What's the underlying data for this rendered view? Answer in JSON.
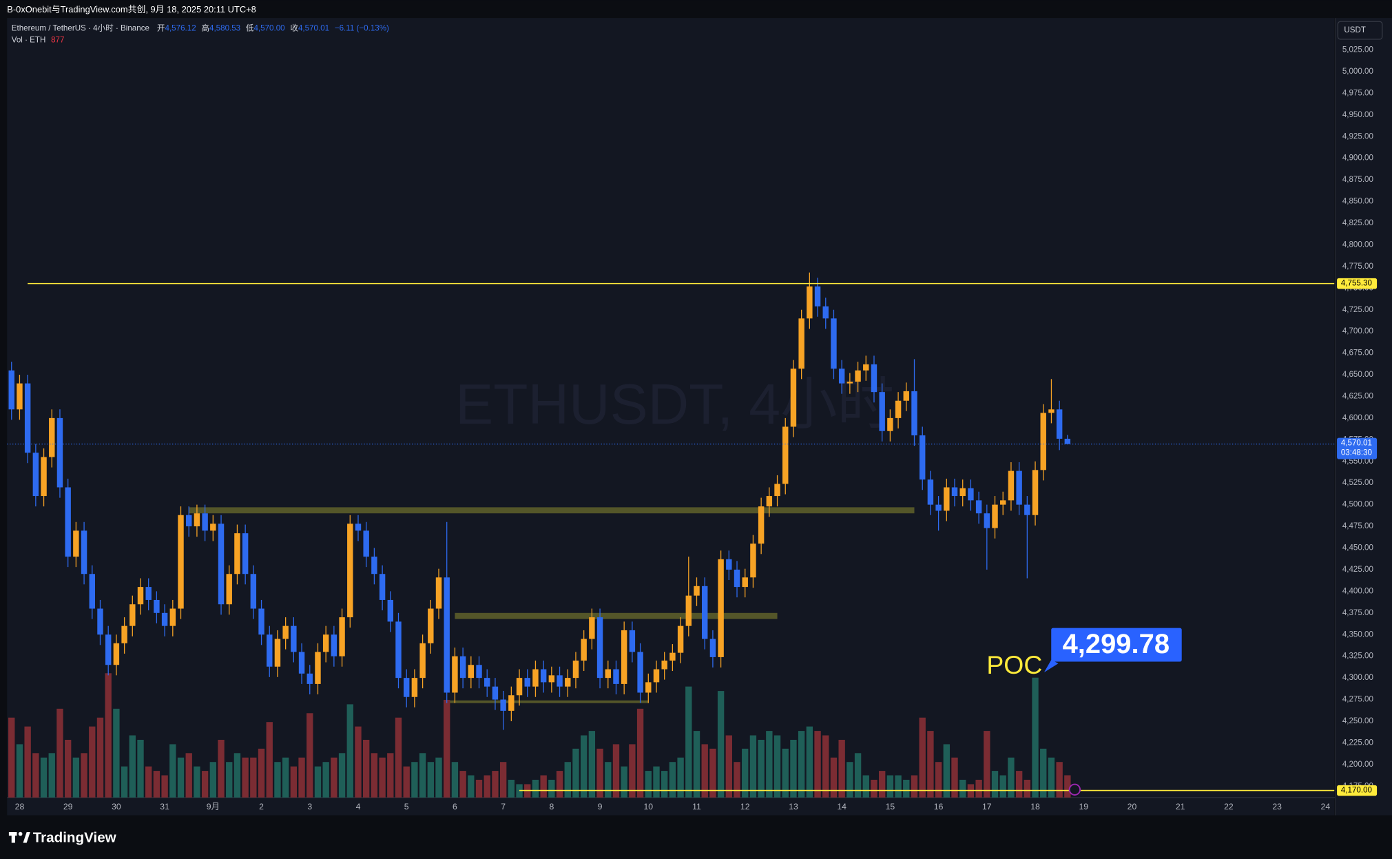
{
  "chart_data": {
    "type": "candlestick",
    "header": "B-0xOnebit与TradingView.com共创, 9月 18, 2025 20:11 UTC+8",
    "watermark": "ETHUSDT, 4小时",
    "symbol": "Ethereum / TetherUS · 4小时 · Binance",
    "ohlc_legend": [
      {
        "key": "开",
        "value": "4,576.12"
      },
      {
        "key": "高",
        "value": "4,580.53"
      },
      {
        "key": "低",
        "value": "4,570.00"
      },
      {
        "key": "收",
        "value": "4,570.01"
      }
    ],
    "change": "−6.11 (−0.13%)",
    "volume_legend": "Vol · ETH",
    "volume_legend_value": "877",
    "currency": "USDT",
    "brand": "TradingView",
    "up_color": "#f7a325",
    "down_color": "#2e6bf0",
    "volume_up_color": "#1f5f58",
    "volume_down_color": "#7b2c33",
    "xlim": [
      -0.55,
      164.1
    ],
    "ylim": [
      4161.9,
      5061.9
    ],
    "grid": false,
    "xticks": [
      {
        "value": 1,
        "label": "28"
      },
      {
        "value": 7,
        "label": "29"
      },
      {
        "value": 13,
        "label": "30"
      },
      {
        "value": 19,
        "label": "31"
      },
      {
        "value": 25,
        "label": "9月"
      },
      {
        "value": 31,
        "label": "2"
      },
      {
        "value": 37,
        "label": "3"
      },
      {
        "value": 43,
        "label": "4"
      },
      {
        "value": 49,
        "label": "5"
      },
      {
        "value": 55,
        "label": "6"
      },
      {
        "value": 61,
        "label": "7"
      },
      {
        "value": 67,
        "label": "8"
      },
      {
        "value": 73,
        "label": "9"
      },
      {
        "value": 79,
        "label": "10"
      },
      {
        "value": 85,
        "label": "11"
      },
      {
        "value": 91,
        "label": "12"
      },
      {
        "value": 97,
        "label": "13"
      },
      {
        "value": 103,
        "label": "14"
      },
      {
        "value": 109,
        "label": "15"
      },
      {
        "value": 115,
        "label": "16"
      },
      {
        "value": 121,
        "label": "17"
      },
      {
        "value": 127,
        "label": "18"
      },
      {
        "value": 133,
        "label": "19"
      },
      {
        "value": 139,
        "label": "20"
      },
      {
        "value": 145,
        "label": "21"
      },
      {
        "value": 151,
        "label": "22"
      },
      {
        "value": 157,
        "label": "23"
      },
      {
        "value": 163,
        "label": "24"
      }
    ],
    "yticks": [
      {
        "value": 4175,
        "label": "4,175.00"
      },
      {
        "value": 4200,
        "label": "4,200.00"
      },
      {
        "value": 4225,
        "label": "4,225.00"
      },
      {
        "value": 4250,
        "label": "4,250.00"
      },
      {
        "value": 4275,
        "label": "4,275.00"
      },
      {
        "value": 4300,
        "label": "4,300.00"
      },
      {
        "value": 4325,
        "label": "4,325.00"
      },
      {
        "value": 4350,
        "label": "4,350.00"
      },
      {
        "value": 4375,
        "label": "4,375.00"
      },
      {
        "value": 4400,
        "label": "4,400.00"
      },
      {
        "value": 4425,
        "label": "4,425.00"
      },
      {
        "value": 4450,
        "label": "4,450.00"
      },
      {
        "value": 4475,
        "label": "4,475.00"
      },
      {
        "value": 4500,
        "label": "4,500.00"
      },
      {
        "value": 4525,
        "label": "4,525.00"
      },
      {
        "value": 4550,
        "label": "4,550.00"
      },
      {
        "value": 4575,
        "label": "4,575.00"
      },
      {
        "value": 4600,
        "label": "4,600.00"
      },
      {
        "value": 4625,
        "label": "4,625.00"
      },
      {
        "value": 4650,
        "label": "4,650.00"
      },
      {
        "value": 4675,
        "label": "4,675.00"
      },
      {
        "value": 4700,
        "label": "4,700.00"
      },
      {
        "value": 4725,
        "label": "4,725.00"
      },
      {
        "value": 4750,
        "label": "4,750.00"
      },
      {
        "value": 4775,
        "label": "4,775.00"
      },
      {
        "value": 4800,
        "label": "4,800.00"
      },
      {
        "value": 4825,
        "label": "4,825.00"
      },
      {
        "value": 4850,
        "label": "4,850.00"
      },
      {
        "value": 4875,
        "label": "4,875.00"
      },
      {
        "value": 4900,
        "label": "4,900.00"
      },
      {
        "value": 4925,
        "label": "4,925.00"
      },
      {
        "value": 4950,
        "label": "4,950.00"
      },
      {
        "value": 4975,
        "label": "4,975.00"
      },
      {
        "value": 5000,
        "label": "5,000.00"
      },
      {
        "value": 5025,
        "label": "5,025.00"
      }
    ],
    "open": [
      4655,
      4610,
      4640,
      4560,
      4510,
      4555,
      4600,
      4520,
      4440,
      4470,
      4420,
      4380,
      4350,
      4315,
      4340,
      4360,
      4385,
      4405,
      4390,
      4375,
      4360,
      4380,
      4488,
      4475,
      4490,
      4470,
      4478,
      4385,
      4420,
      4467,
      4420,
      4380,
      4350,
      4313,
      4345,
      4360,
      4330,
      4305,
      4293,
      4330,
      4350,
      4325,
      4370,
      4478,
      4470,
      4440,
      4420,
      4390,
      4365,
      4300,
      4278,
      4300,
      4340,
      4380,
      4416,
      4283,
      4325,
      4300,
      4315,
      4300,
      4290,
      4275,
      4262,
      4280,
      4300,
      4290,
      4310,
      4295,
      4303,
      4290,
      4300,
      4320,
      4345,
      4370,
      4300,
      4310,
      4293,
      4355,
      4330,
      4283,
      4295,
      4310,
      4320,
      4329,
      4360,
      4395,
      4406,
      4345,
      4324,
      4437,
      4425,
      4405,
      4416,
      4455,
      4498,
      4510,
      4524,
      4590,
      4657,
      4715,
      4752,
      4729,
      4715,
      4657,
      4640,
      4642,
      4655,
      4662,
      4630,
      4585,
      4600,
      4620,
      4631,
      4580,
      4529,
      4500,
      4493,
      4520,
      4510,
      4519,
      4505,
      4490,
      4473,
      4500,
      4505,
      4539,
      4500,
      4488,
      4540,
      4606,
      4610,
      4576.12
    ],
    "high": [
      4665,
      4650,
      4650,
      4570,
      4565,
      4610,
      4610,
      4530,
      4480,
      4480,
      4430,
      4390,
      4360,
      4350,
      4370,
      4395,
      4415,
      4415,
      4400,
      4385,
      4390,
      4498,
      4498,
      4500,
      4500,
      4488,
      4488,
      4430,
      4477,
      4477,
      4430,
      4390,
      4360,
      4355,
      4370,
      4370,
      4340,
      4315,
      4340,
      4360,
      4360,
      4380,
      4488,
      4488,
      4480,
      4450,
      4430,
      4400,
      4375,
      4310,
      4310,
      4350,
      4390,
      4426,
      4480,
      4335,
      4335,
      4325,
      4325,
      4310,
      4300,
      4285,
      4290,
      4310,
      4310,
      4320,
      4320,
      4313,
      4313,
      4310,
      4330,
      4355,
      4380,
      4380,
      4320,
      4320,
      4365,
      4365,
      4340,
      4305,
      4320,
      4330,
      4339,
      4370,
      4440,
      4416,
      4416,
      4355,
      4447,
      4447,
      4435,
      4426,
      4465,
      4508,
      4520,
      4534,
      4600,
      4667,
      4725,
      4768,
      4762,
      4739,
      4725,
      4667,
      4652,
      4665,
      4672,
      4672,
      4640,
      4610,
      4630,
      4641,
      4668,
      4590,
      4539,
      4510,
      4530,
      4530,
      4529,
      4529,
      4515,
      4500,
      4510,
      4515,
      4549,
      4549,
      4510,
      4550,
      4616,
      4645,
      4620,
      4580.53
    ],
    "low": [
      4598,
      4598,
      4548,
      4498,
      4498,
      4543,
      4508,
      4428,
      4428,
      4408,
      4368,
      4338,
      4303,
      4303,
      4328,
      4348,
      4373,
      4378,
      4363,
      4348,
      4348,
      4368,
      4463,
      4463,
      4458,
      4458,
      4373,
      4373,
      4408,
      4408,
      4368,
      4338,
      4301,
      4301,
      4333,
      4318,
      4293,
      4281,
      4281,
      4318,
      4313,
      4313,
      4358,
      4458,
      4428,
      4408,
      4378,
      4353,
      4288,
      4266,
      4266,
      4288,
      4328,
      4368,
      4271,
      4271,
      4288,
      4288,
      4288,
      4278,
      4263,
      4240,
      4250,
      4268,
      4278,
      4278,
      4283,
      4283,
      4278,
      4278,
      4288,
      4308,
      4333,
      4288,
      4288,
      4281,
      4281,
      4318,
      4271,
      4271,
      4283,
      4298,
      4308,
      4317,
      4348,
      4383,
      4333,
      4312,
      4312,
      4413,
      4393,
      4393,
      4404,
      4443,
      4486,
      4498,
      4512,
      4578,
      4645,
      4703,
      4717,
      4703,
      4645,
      4628,
      4628,
      4630,
      4643,
      4618,
      4573,
      4573,
      4588,
      4608,
      4568,
      4517,
      4488,
      4470,
      4481,
      4498,
      4498,
      4493,
      4478,
      4425,
      4461,
      4488,
      4493,
      4488,
      4415,
      4476,
      4528,
      4594,
      4563,
      4570
    ],
    "close": [
      4610,
      4640,
      4560,
      4510,
      4555,
      4600,
      4520,
      4440,
      4470,
      4420,
      4380,
      4350,
      4315,
      4340,
      4360,
      4385,
      4405,
      4390,
      4375,
      4360,
      4380,
      4488,
      4475,
      4490,
      4470,
      4478,
      4385,
      4420,
      4467,
      4420,
      4380,
      4350,
      4313,
      4345,
      4360,
      4330,
      4305,
      4293,
      4330,
      4350,
      4325,
      4370,
      4478,
      4470,
      4440,
      4420,
      4390,
      4365,
      4300,
      4278,
      4300,
      4340,
      4380,
      4416,
      4283,
      4325,
      4300,
      4315,
      4300,
      4290,
      4275,
      4262,
      4280,
      4300,
      4290,
      4310,
      4295,
      4303,
      4290,
      4300,
      4320,
      4345,
      4370,
      4300,
      4310,
      4293,
      4355,
      4330,
      4283,
      4295,
      4310,
      4320,
      4329,
      4360,
      4395,
      4406,
      4345,
      4324,
      4437,
      4425,
      4405,
      4416,
      4455,
      4498,
      4510,
      4524,
      4590,
      4657,
      4715,
      4752,
      4729,
      4715,
      4657,
      4640,
      4642,
      4655,
      4662,
      4630,
      4585,
      4600,
      4620,
      4631,
      4580,
      4529,
      4500,
      4493,
      4520,
      4510,
      4519,
      4505,
      4490,
      4473,
      4500,
      4505,
      4539,
      4500,
      4488,
      4540,
      4606,
      4610,
      4576.12,
      4570.01
    ],
    "volume": [
      3150,
      2100,
      2800,
      1750,
      1575,
      1750,
      3500,
      2275,
      1575,
      1750,
      2800,
      3150,
      4900,
      3500,
      1225,
      2450,
      2275,
      1225,
      1050,
      875,
      2100,
      1575,
      1750,
      1225,
      1050,
      1400,
      2275,
      1400,
      1750,
      1575,
      1575,
      1925,
      2975,
      1400,
      1575,
      1225,
      1575,
      3325,
      1225,
      1400,
      1575,
      1750,
      3675,
      2800,
      2275,
      1750,
      1575,
      1750,
      3150,
      1225,
      1400,
      1750,
      1400,
      1575,
      3850,
      1400,
      1050,
      875,
      700,
      875,
      1050,
      1400,
      700,
      525,
      525,
      700,
      875,
      700,
      1050,
      1400,
      1925,
      2450,
      2625,
      1925,
      1400,
      2100,
      1225,
      2100,
      3500,
      1050,
      1225,
      1050,
      1400,
      1575,
      4375,
      2625,
      2100,
      1925,
      4200,
      2450,
      1400,
      1925,
      2450,
      2275,
      2625,
      2450,
      1925,
      2275,
      2625,
      2800,
      2625,
      2450,
      1575,
      2275,
      1400,
      1750,
      875,
      700,
      1050,
      875,
      875,
      700,
      875,
      3150,
      2625,
      1400,
      2100,
      1575,
      700,
      525,
      700,
      2625,
      1050,
      875,
      1575,
      1050,
      700,
      4725,
      1925,
      1575,
      1400,
      877
    ],
    "last_price_label": "4,570.01",
    "countdown": "03:48:30",
    "hlines": [
      {
        "value": 4755.3,
        "label": "4,755.30",
        "color": "#ffeb3b",
        "start": 2
      },
      {
        "value": 4170,
        "label": "4,170.00",
        "color": "#ffeb3b",
        "start": 63
      }
    ],
    "zones": [
      {
        "low": 4490,
        "high": 4497,
        "start": 22,
        "end": 112
      },
      {
        "low": 4368,
        "high": 4375,
        "start": 55,
        "end": 95
      },
      {
        "low": 4271,
        "high": 4274,
        "start": 54,
        "end": 79
      }
    ],
    "poc": {
      "label": "POC",
      "value": 4299.78,
      "value_label": "4,299.78",
      "index": 127
    }
  }
}
